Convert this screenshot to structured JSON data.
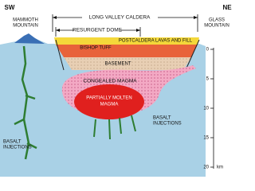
{
  "compass": {
    "left": "SW",
    "right": "NE"
  },
  "labels": {
    "caldera": "LONG VALLEY CALDERA",
    "resurgent_dome": "RESURGENT DOME",
    "mammoth": [
      "MAMMOTH",
      "MOUNTAIN"
    ],
    "glass": [
      "GLASS",
      "MOUNTAIN"
    ],
    "postcaldera": "POSTCALDERA LAVAS AND FILL",
    "bishop_tuff": "BISHOP TUFF",
    "basement": "BASEMENT",
    "congealed": "CONGEALED MAGMA",
    "molten": [
      "PARTIALLY MOLTEN",
      "MAGMA"
    ],
    "basalt_left": [
      "BASALT",
      "INJECTIONS"
    ],
    "basalt_right": [
      "BASALT",
      "INJECTIONS"
    ]
  },
  "depth_scale": {
    "ticks": [
      0,
      5,
      10,
      15,
      20
    ],
    "unit": "km"
  }
}
